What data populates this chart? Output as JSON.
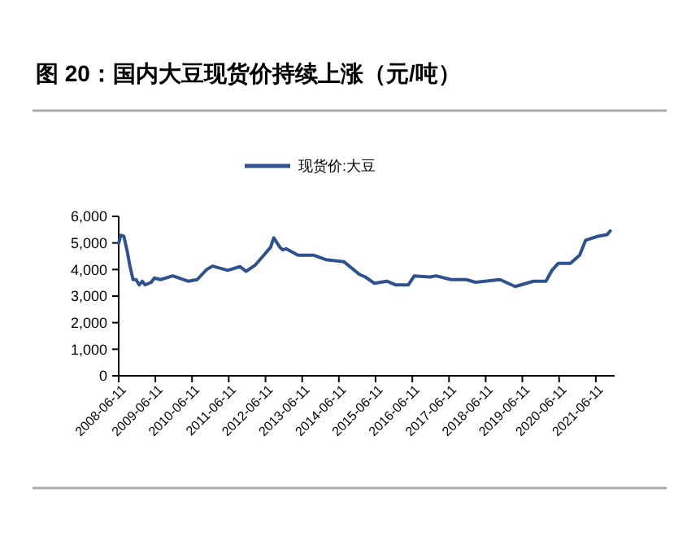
{
  "chart_data": {
    "type": "line",
    "title": "图 20：国内大豆现货价持续上涨（元/吨）",
    "x": [
      "2008-06-11",
      "2008-07",
      "2008-08",
      "2008-09",
      "2008-10",
      "2008-11",
      "2008-12",
      "2009-01",
      "2009-02",
      "2009-03",
      "2009-05",
      "2009-06",
      "2009-08",
      "2009-12",
      "2010-05",
      "2010-08",
      "2010-11",
      "2011-01",
      "2011-06",
      "2011-10",
      "2011-12",
      "2012-03",
      "2012-05",
      "2012-08",
      "2012-09",
      "2012-11",
      "2012-12",
      "2013-01",
      "2013-05",
      "2013-10",
      "2014-02",
      "2014-08",
      "2015-01",
      "2015-03",
      "2015-06",
      "2015-10",
      "2016-01",
      "2016-05",
      "2016-07",
      "2016-12",
      "2017-02",
      "2017-07",
      "2017-12",
      "2018-03",
      "2018-11",
      "2019-04",
      "2019-10",
      "2020-02",
      "2020-04",
      "2020-06",
      "2020-10",
      "2021-01",
      "2021-03",
      "2021-07",
      "2021-10",
      "2021-11"
    ],
    "series": [
      {
        "name": "现货价:大豆",
        "color": "#2f528f",
        "values": [
          4980,
          5290,
          5250,
          4740,
          4130,
          3620,
          3620,
          3420,
          3560,
          3420,
          3520,
          3680,
          3620,
          3760,
          3560,
          3620,
          3990,
          4130,
          3970,
          4110,
          3930,
          4170,
          4430,
          4840,
          5190,
          4840,
          4740,
          4780,
          4540,
          4540,
          4370,
          4290,
          3820,
          3720,
          3480,
          3560,
          3420,
          3420,
          3760,
          3720,
          3760,
          3620,
          3620,
          3520,
          3620,
          3360,
          3560,
          3560,
          3970,
          4230,
          4230,
          4540,
          5100,
          5250,
          5310,
          5450
        ]
      }
    ],
    "xlim": [
      "2008-06-11",
      "2021-12-15"
    ],
    "xticks": [
      "2008-06-11",
      "2009-06-11",
      "2010-06-11",
      "2011-06-11",
      "2012-06-11",
      "2013-06-11",
      "2014-06-11",
      "2015-06-11",
      "2016-06-11",
      "2017-06-11",
      "2018-06-11",
      "2019-06-11",
      "2020-06-11",
      "2021-06-11"
    ],
    "ylim": [
      0,
      6000
    ],
    "yticks": [
      {
        "value": 0,
        "label": "0"
      },
      {
        "value": 1000,
        "label": "1,000"
      },
      {
        "value": 2000,
        "label": "2,000"
      },
      {
        "value": 3000,
        "label": "3,000"
      },
      {
        "value": 4000,
        "label": "4,000"
      },
      {
        "value": 5000,
        "label": "5,000"
      },
      {
        "value": 6000,
        "label": "6,000"
      }
    ],
    "grid": false,
    "legend": "top",
    "marker": "none",
    "line_style": "solid"
  }
}
